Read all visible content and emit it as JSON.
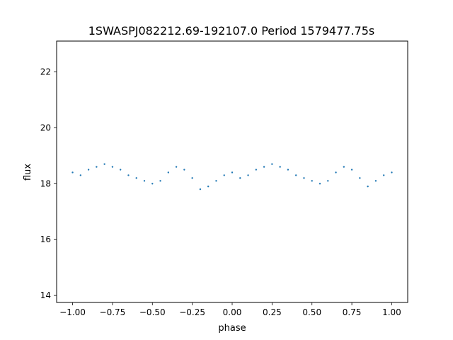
{
  "chart_data": {
    "type": "scatter",
    "title": "1SWASPJ082212.69-192107.0 Period 1579477.75s",
    "xlabel": "phase",
    "ylabel": "flux",
    "xlim": [
      -1.1,
      1.1
    ],
    "ylim": [
      13.75,
      23.1
    ],
    "xticks": [
      -1.0,
      -0.75,
      -0.5,
      -0.25,
      0.0,
      0.25,
      0.5,
      0.75,
      1.0
    ],
    "xtick_labels": [
      "−1.00",
      "−0.75",
      "−0.50",
      "−0.25",
      "0.00",
      "0.25",
      "0.50",
      "0.75",
      "1.00"
    ],
    "yticks": [
      14,
      16,
      18,
      20,
      22
    ],
    "ytick_labels": [
      "14",
      "16",
      "18",
      "20",
      "22"
    ],
    "grid": false,
    "legend": "none",
    "color": "#1f77b4",
    "series": [
      {
        "x": [
          -1.0,
          -0.95,
          -0.9,
          -0.85,
          -0.8,
          -0.75,
          -0.7,
          -0.65,
          -0.6,
          -0.55,
          -0.5,
          -0.45,
          -0.4,
          -0.35,
          -0.3,
          -0.25,
          -0.2,
          -0.15,
          -0.1,
          -0.05,
          0.0,
          0.05,
          0.1,
          0.15,
          0.2,
          0.25,
          0.3,
          0.35,
          0.4,
          0.45,
          0.5,
          0.55,
          0.6,
          0.65,
          0.7,
          0.75,
          0.8,
          0.85,
          0.9,
          0.95,
          1.0
        ],
        "y": [
          18.4,
          18.3,
          18.5,
          18.6,
          18.7,
          18.6,
          18.5,
          18.3,
          18.2,
          18.1,
          18.0,
          18.1,
          18.4,
          18.6,
          18.5,
          18.2,
          17.8,
          17.9,
          18.1,
          18.3,
          18.4,
          18.2,
          18.3,
          18.5,
          18.6,
          18.7,
          18.6,
          18.5,
          18.3,
          18.2,
          18.1,
          18.0,
          18.1,
          18.4,
          18.6,
          18.5,
          18.2,
          17.9,
          18.1,
          18.3,
          18.4
        ]
      }
    ]
  }
}
